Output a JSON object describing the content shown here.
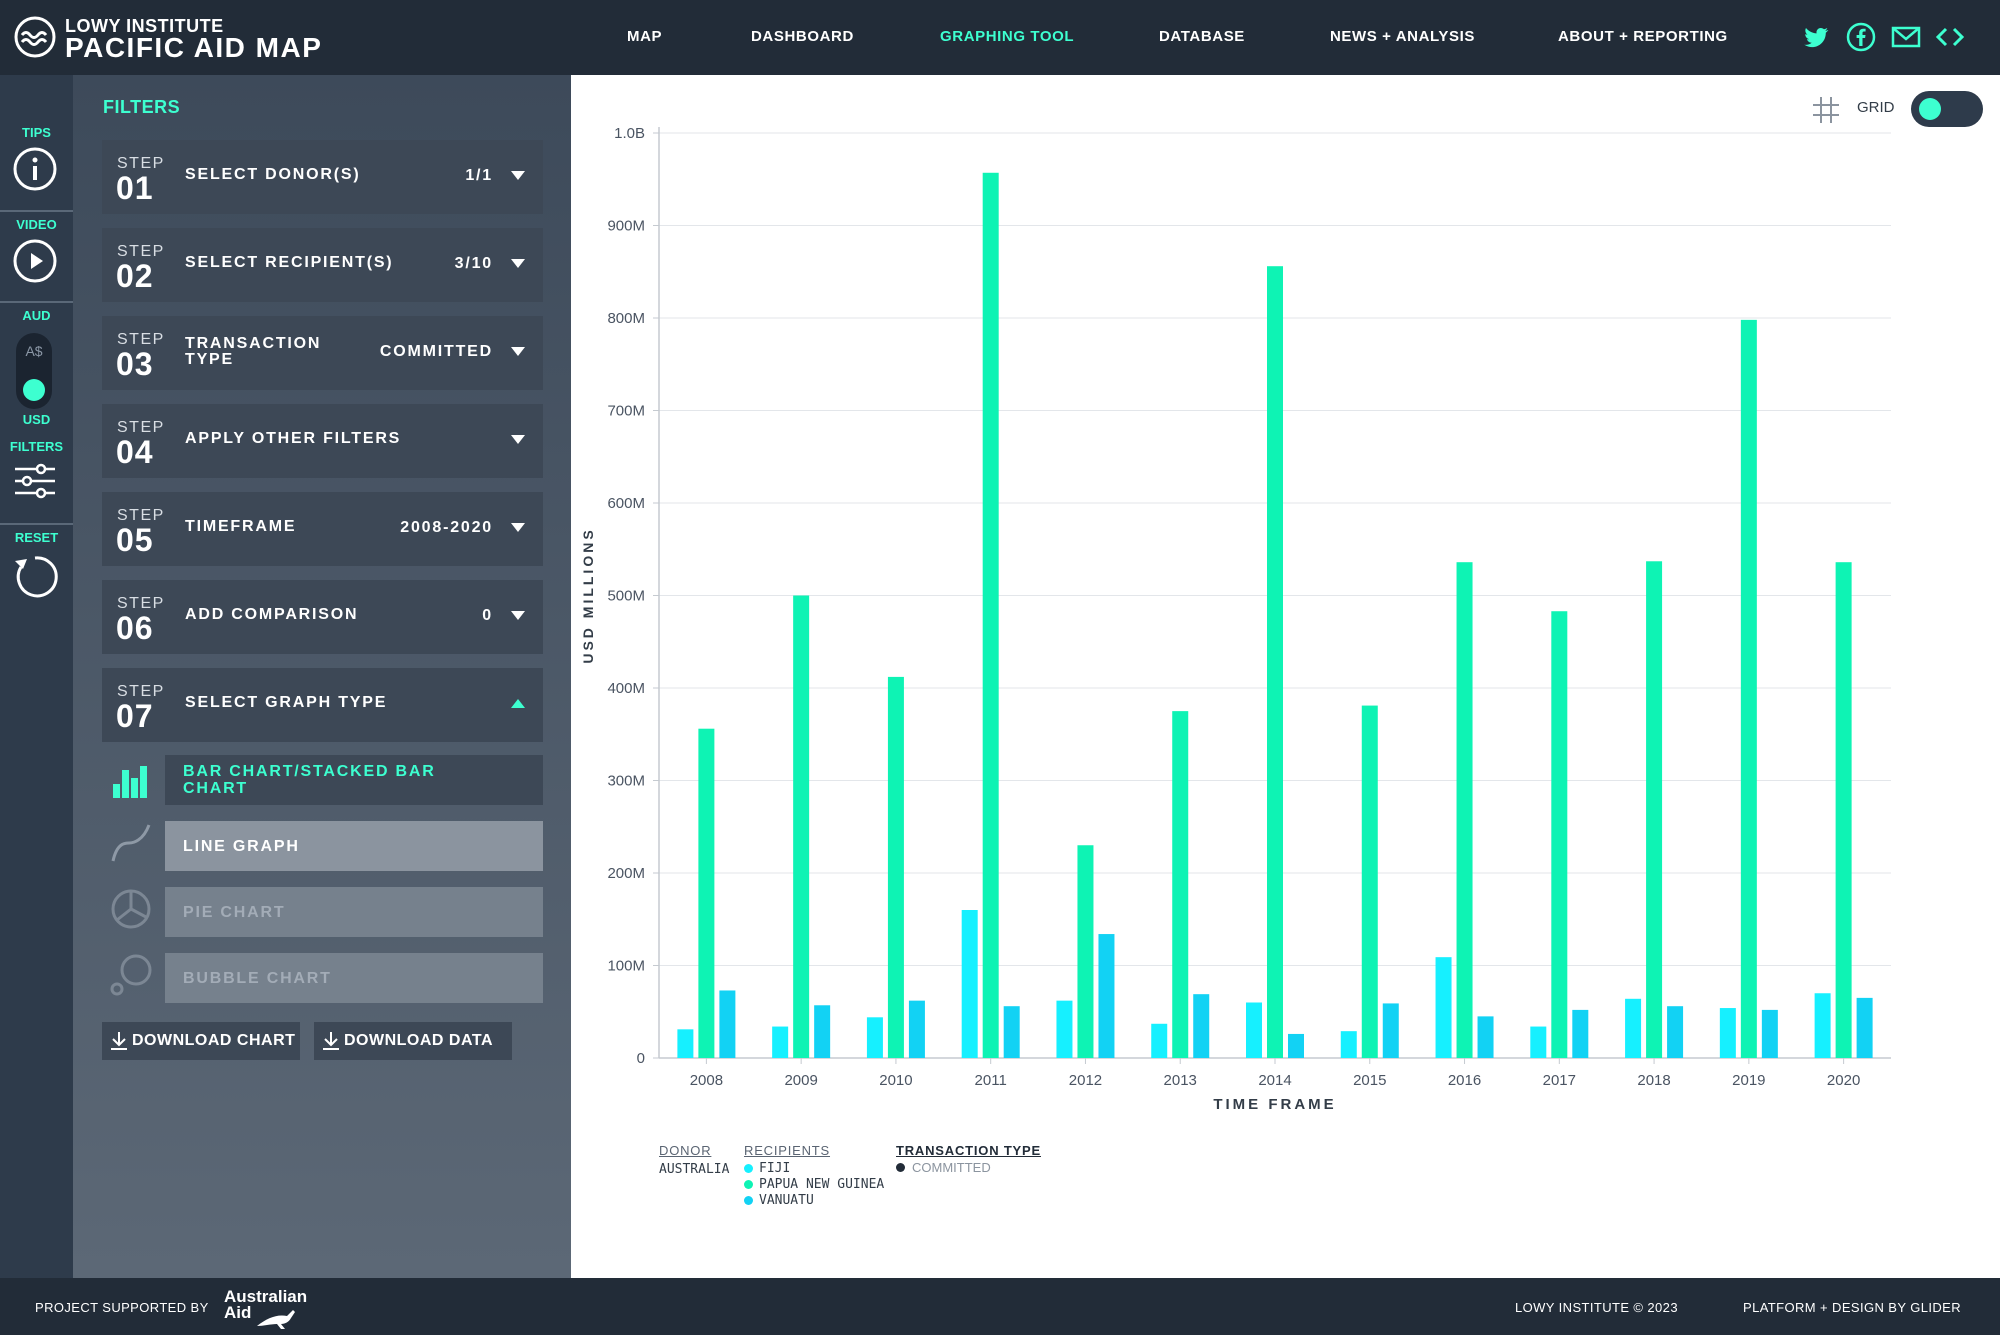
{
  "header": {
    "logo_line1": "LOWY INSTITUTE",
    "logo_line2": "PACIFIC AID MAP",
    "nav": [
      {
        "label": "MAP",
        "active": false
      },
      {
        "label": "DASHBOARD",
        "active": false
      },
      {
        "label": "GRAPHING TOOL",
        "active": true
      },
      {
        "label": "DATABASE",
        "active": false
      },
      {
        "label": "NEWS + ANALYSIS",
        "active": false
      },
      {
        "label": "ABOUT + REPORTING",
        "active": false
      }
    ],
    "social_icons": [
      "twitter-icon",
      "facebook-icon",
      "email-icon",
      "embed-icon"
    ]
  },
  "strip": {
    "tips": "TIPS",
    "video": "VIDEO",
    "aud": "AUD",
    "aud_symbol": "A$",
    "usd": "USD",
    "filters": "FILTERS",
    "reset": "RESET"
  },
  "panel": {
    "title": "FILTERS",
    "steps": [
      {
        "word": "STEP",
        "num": "01",
        "label": "SELECT DONOR(S)",
        "value": "1/1"
      },
      {
        "word": "STEP",
        "num": "02",
        "label": "SELECT RECIPIENT(S)",
        "value": "3/10"
      },
      {
        "word": "STEP",
        "num": "03",
        "label": "TRANSACTION TYPE",
        "value": "COMMITTED"
      },
      {
        "word": "STEP",
        "num": "04",
        "label": "APPLY OTHER FILTERS",
        "value": ""
      },
      {
        "word": "STEP",
        "num": "05",
        "label": "TIMEFRAME",
        "value": "2008-2020"
      },
      {
        "word": "STEP",
        "num": "06",
        "label": "ADD COMPARISON",
        "value": "0"
      },
      {
        "word": "STEP",
        "num": "07",
        "label": "SELECT GRAPH TYPE",
        "value": ""
      }
    ],
    "graph_types": [
      {
        "label": "BAR CHART/STACKED BAR CHART",
        "icon": "bar-chart-icon",
        "selected": true
      },
      {
        "label": "LINE GRAPH",
        "icon": "line-graph-icon",
        "selected": false
      },
      {
        "label": "PIE CHART",
        "icon": "pie-chart-icon",
        "selected": false
      },
      {
        "label": "BUBBLE CHART",
        "icon": "bubble-chart-icon",
        "selected": false
      }
    ],
    "download_chart": "DOWNLOAD CHART",
    "download_data": "DOWNLOAD DATA"
  },
  "grid_toggle": {
    "label": "GRID",
    "on": true
  },
  "legend": {
    "donor_head": "DONOR",
    "donor": "AUSTRALIA",
    "recipients_head": "RECIPIENTS",
    "recipients": [
      "FIJI",
      "PAPUA NEW GUINEA",
      "VANUATU"
    ],
    "transaction_head": "TRANSACTION TYPE",
    "transaction": "COMMITTED"
  },
  "footer": {
    "supported_by": "PROJECT SUPPORTED BY",
    "aus_aid_1": "Australian",
    "aus_aid_2": "Aid",
    "copyright": "LOWY INSTITUTE © 2023",
    "platform": "PLATFORM + DESIGN BY GLIDER"
  },
  "colors": {
    "accent": "#3dffd0",
    "fiji": "#16f0ff",
    "png": "#0ef3b4",
    "vanuatu": "#12d2f4",
    "nav_bg": "#222c38"
  },
  "chart_data": {
    "type": "bar",
    "categories": [
      "2008",
      "2009",
      "2010",
      "2011",
      "2012",
      "2013",
      "2014",
      "2015",
      "2016",
      "2017",
      "2018",
      "2019",
      "2020"
    ],
    "series": [
      {
        "name": "FIJI",
        "color": "#16f0ff",
        "values": [
          31,
          34,
          44,
          160,
          62,
          37,
          60,
          29,
          109,
          34,
          64,
          54,
          70
        ]
      },
      {
        "name": "PAPUA NEW GUINEA",
        "color": "#0ef3b4",
        "values": [
          356,
          500,
          412,
          957,
          230,
          375,
          856,
          381,
          536,
          483,
          537,
          798,
          536
        ]
      },
      {
        "name": "VANUATU",
        "color": "#12d2f4",
        "values": [
          73,
          57,
          62,
          56,
          134,
          69,
          26,
          59,
          45,
          52,
          56,
          52,
          65
        ]
      }
    ],
    "ylabel": "USD MILLIONS",
    "xlabel": "TIME FRAME",
    "yticks": [
      "0",
      "100M",
      "200M",
      "300M",
      "400M",
      "500M",
      "600M",
      "700M",
      "800M",
      "900M",
      "1.0B"
    ],
    "ylim": [
      0,
      1000
    ],
    "grid": true
  }
}
